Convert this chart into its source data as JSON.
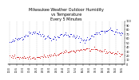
{
  "title": "Milwaukee Weather Outdoor Humidity\nvs Temperature\nEvery 5 Minutes",
  "title_fontsize": 3.5,
  "blue_color": "#0000cc",
  "red_color": "#cc0000",
  "background_color": "#ffffff",
  "ylim": [
    0,
    100
  ],
  "num_points": 120,
  "seed": 42
}
